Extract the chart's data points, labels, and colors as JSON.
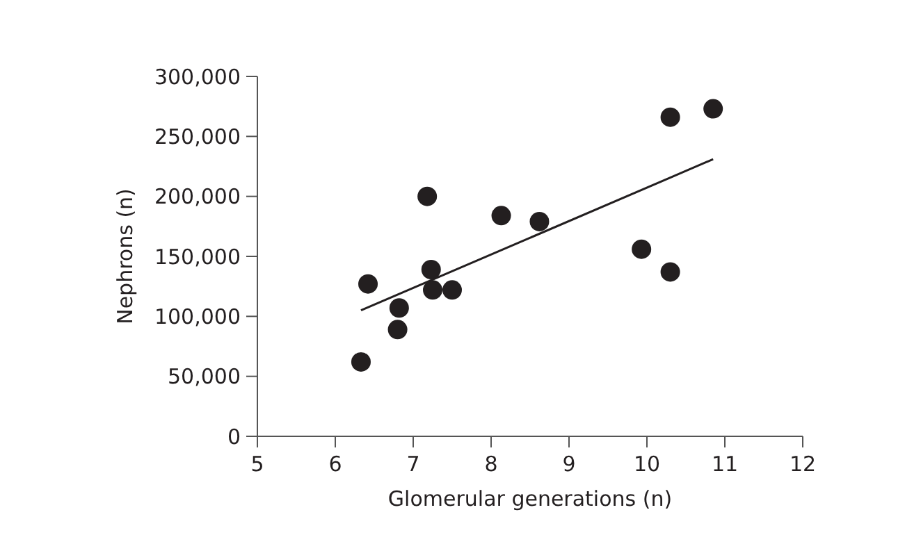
{
  "chart_data": {
    "type": "scatter",
    "xlabel": "Glomerular generations (n)",
    "ylabel": "Nephrons (n)",
    "xlim": [
      5,
      12
    ],
    "ylim": [
      0,
      300000
    ],
    "xticks": [
      5,
      6,
      7,
      8,
      9,
      10,
      11,
      12
    ],
    "yticks": [
      {
        "value": 0,
        "label": "0"
      },
      {
        "value": 50000,
        "label": "50,000"
      },
      {
        "value": 100000,
        "label": "100,000"
      },
      {
        "value": 150000,
        "label": "150,000"
      },
      {
        "value": 200000,
        "label": "200,000"
      },
      {
        "value": 250000,
        "label": "250,000"
      },
      {
        "value": 300000,
        "label": "300,000"
      }
    ],
    "grid": false,
    "marker": "circle",
    "series": [
      {
        "color": "#231f20",
        "x": [
          6.33,
          6.42,
          6.8,
          6.82,
          7.18,
          7.23,
          7.25,
          7.5,
          8.13,
          8.62,
          9.93,
          10.3,
          10.3,
          10.85
        ],
        "values": [
          62000,
          127000,
          89000,
          107000,
          200000,
          139000,
          122000,
          122000,
          184000,
          179000,
          156000,
          266000,
          137000,
          273000
        ]
      },
      {
        "type": "line",
        "color": "#231f20",
        "marker": "none",
        "line_style": "solid",
        "x": [
          6.33,
          10.85
        ],
        "values": [
          105000,
          231000
        ]
      }
    ]
  }
}
